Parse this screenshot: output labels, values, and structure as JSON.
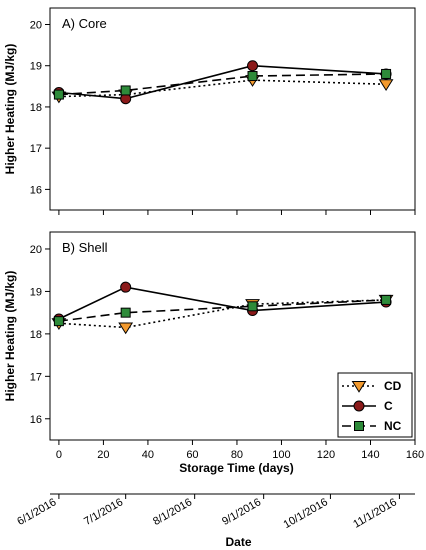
{
  "chart_data": [
    {
      "type": "line",
      "panel_label": "A) Core",
      "ylabel": "Higher Heating (MJ/kg)",
      "ylim": [
        15.5,
        20.4
      ],
      "yticks": [
        16,
        17,
        18,
        19,
        20
      ],
      "xlim": [
        -4,
        160
      ],
      "grid": false,
      "series": [
        {
          "name": "CD",
          "x": [
            0,
            30,
            87,
            147
          ],
          "values": [
            18.25,
            18.3,
            18.65,
            18.55
          ],
          "color": "#f39a2e",
          "marker": "triangle-down",
          "dash": "dotted"
        },
        {
          "name": "C",
          "x": [
            0,
            30,
            87,
            147
          ],
          "values": [
            18.35,
            18.2,
            19.0,
            18.8
          ],
          "color": "#8b1a1a",
          "marker": "circle",
          "dash": "solid"
        },
        {
          "name": "NC",
          "x": [
            0,
            30,
            87,
            147
          ],
          "values": [
            18.3,
            18.4,
            18.75,
            18.8
          ],
          "color": "#2e8b3a",
          "marker": "square",
          "dash": "dashed"
        }
      ]
    },
    {
      "type": "line",
      "panel_label": "B) Shell",
      "ylabel": "Higher Heating (MJ/kg)",
      "xlabel": "Storage Time (days)",
      "xlim": [
        -4,
        160
      ],
      "xticks": [
        0,
        20,
        40,
        60,
        80,
        100,
        120,
        140,
        160
      ],
      "ylim": [
        15.5,
        20.4
      ],
      "yticks": [
        16,
        17,
        18,
        19,
        20
      ],
      "grid": false,
      "legend": "bottom-right",
      "secondary_xlabel": "Date",
      "secondary_xticks": [
        {
          "label": "6/1/2016",
          "day": 0
        },
        {
          "label": "7/1/2016",
          "day": 30
        },
        {
          "label": "8/1/2016",
          "day": 61
        },
        {
          "label": "9/1/2016",
          "day": 92
        },
        {
          "label": "10/1/2016",
          "day": 122
        },
        {
          "label": "11/1/2016",
          "day": 153
        }
      ],
      "series": [
        {
          "name": "CD",
          "x": [
            0,
            30,
            87,
            147
          ],
          "values": [
            18.25,
            18.15,
            18.7,
            18.8
          ],
          "color": "#f39a2e",
          "marker": "triangle-down",
          "dash": "dotted"
        },
        {
          "name": "C",
          "x": [
            0,
            30,
            87,
            147
          ],
          "values": [
            18.35,
            19.1,
            18.55,
            18.75
          ],
          "color": "#8b1a1a",
          "marker": "circle",
          "dash": "solid"
        },
        {
          "name": "NC",
          "x": [
            0,
            30,
            87,
            147
          ],
          "values": [
            18.3,
            18.5,
            18.65,
            18.8
          ],
          "color": "#2e8b3a",
          "marker": "square",
          "dash": "dashed"
        }
      ]
    }
  ]
}
